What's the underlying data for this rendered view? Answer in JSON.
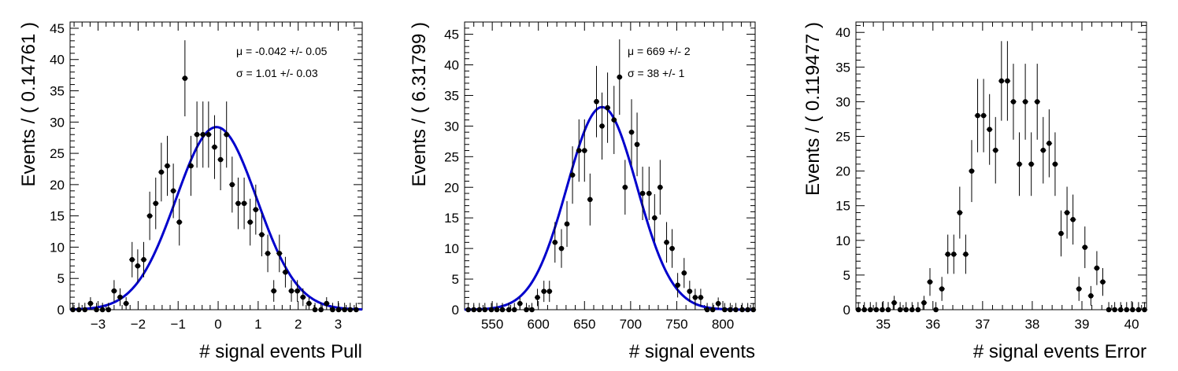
{
  "chart_data": [
    {
      "type": "scatter",
      "xlabel": "# signal events Pull",
      "ylabel": "Events / ( 0.14761 )",
      "xlim": [
        -3.7,
        3.6
      ],
      "ylim": [
        0,
        46
      ],
      "xticks": [
        -3,
        -2,
        -1,
        0,
        1,
        2,
        3
      ],
      "yticks": [
        0,
        5,
        10,
        15,
        20,
        25,
        30,
        35,
        40,
        45
      ],
      "stats": [
        "μ = -0.042 +/- 0.05",
        "σ =  1.01 +/- 0.03"
      ],
      "fit": {
        "mu": -0.042,
        "sigma": 1.01,
        "peak": 29.2,
        "color": "#0000cc"
      },
      "points": {
        "x": [
          -3.63,
          -3.48,
          -3.33,
          -3.19,
          -3.04,
          -2.89,
          -2.74,
          -2.6,
          -2.45,
          -2.3,
          -2.15,
          -2.01,
          -1.86,
          -1.71,
          -1.56,
          -1.42,
          -1.27,
          -1.12,
          -0.97,
          -0.83,
          -0.68,
          -0.53,
          -0.38,
          -0.24,
          -0.09,
          0.06,
          0.21,
          0.35,
          0.5,
          0.65,
          0.8,
          0.94,
          1.09,
          1.24,
          1.39,
          1.53,
          1.68,
          1.83,
          1.98,
          2.12,
          2.27,
          2.42,
          2.57,
          2.71,
          2.86,
          3.01,
          3.16,
          3.3,
          3.45
        ],
        "y": [
          0,
          0,
          0,
          1,
          0,
          0,
          0,
          3,
          2,
          1,
          8,
          7,
          8,
          15,
          17,
          22,
          23,
          19,
          14,
          37,
          23,
          28,
          28,
          28,
          26,
          24,
          28,
          20,
          17,
          17,
          14,
          16,
          12,
          9,
          3,
          9,
          6,
          3,
          3,
          2,
          1,
          0,
          0,
          1,
          0,
          0,
          0,
          0,
          0
        ]
      }
    },
    {
      "type": "scatter",
      "xlabel": "# signal events",
      "ylabel": "Events / ( 6.31799 )",
      "xlim": [
        520,
        835
      ],
      "ylim": [
        0,
        47
      ],
      "xticks": [
        550,
        600,
        650,
        700,
        750,
        800
      ],
      "yticks": [
        0,
        5,
        10,
        15,
        20,
        25,
        30,
        35,
        40,
        45
      ],
      "stats": [
        "μ =  669 +/- 2",
        "σ =  38 +/- 1"
      ],
      "fit": {
        "mu": 669,
        "sigma": 38,
        "peak": 33.1,
        "color": "#0000cc"
      },
      "points": {
        "x": [
          524,
          530,
          536,
          542,
          549,
          555,
          561,
          568,
          574,
          580,
          587,
          593,
          599,
          606,
          612,
          618,
          625,
          631,
          637,
          644,
          650,
          656,
          663,
          669,
          675,
          682,
          688,
          694,
          701,
          707,
          713,
          720,
          726,
          732,
          739,
          745,
          751,
          758,
          764,
          770,
          776,
          783,
          789,
          795,
          802,
          808,
          814,
          821,
          827,
          833
        ],
        "y": [
          0,
          0,
          0,
          0,
          0,
          0,
          0,
          0,
          0,
          1,
          0,
          0,
          2,
          3,
          3,
          11,
          10,
          14,
          22,
          26,
          26,
          18,
          34,
          30,
          33,
          31,
          38,
          20,
          29,
          27,
          19,
          19,
          15,
          20,
          11,
          10,
          4,
          6,
          3,
          2,
          2,
          0,
          0,
          1,
          0,
          0,
          0,
          0,
          0,
          0
        ]
      }
    },
    {
      "type": "scatter",
      "xlabel": "# signal events Error",
      "ylabel": "Events / ( 0.119477 )",
      "xlim": [
        34.45,
        40.3
      ],
      "ylim": [
        0,
        41.5
      ],
      "xticks": [
        35,
        36,
        37,
        38,
        39,
        40
      ],
      "yticks": [
        0,
        5,
        10,
        15,
        20,
        25,
        30,
        35,
        40
      ],
      "stats": [],
      "fit": null,
      "points": {
        "x": [
          34.5,
          34.62,
          34.74,
          34.86,
          34.98,
          35.1,
          35.22,
          35.34,
          35.46,
          35.58,
          35.7,
          35.82,
          35.94,
          36.06,
          36.18,
          36.3,
          36.42,
          36.54,
          36.66,
          36.78,
          36.9,
          37.02,
          37.14,
          37.26,
          37.38,
          37.5,
          37.62,
          37.74,
          37.86,
          37.98,
          38.1,
          38.22,
          38.34,
          38.46,
          38.58,
          38.7,
          38.82,
          38.94,
          39.06,
          39.18,
          39.3,
          39.42,
          39.54,
          39.66,
          39.78,
          39.9,
          40.02,
          40.14,
          40.26
        ],
        "y": [
          0,
          0,
          0,
          0,
          0,
          0,
          1,
          0,
          0,
          0,
          0,
          1,
          4,
          0,
          3,
          8,
          8,
          14,
          8,
          20,
          28,
          28,
          26,
          23,
          33,
          33,
          30,
          21,
          30,
          21,
          30,
          23,
          24,
          21,
          11,
          14,
          13,
          3,
          9,
          2,
          6,
          4,
          0,
          0,
          0,
          0,
          0,
          0,
          0
        ]
      }
    }
  ]
}
